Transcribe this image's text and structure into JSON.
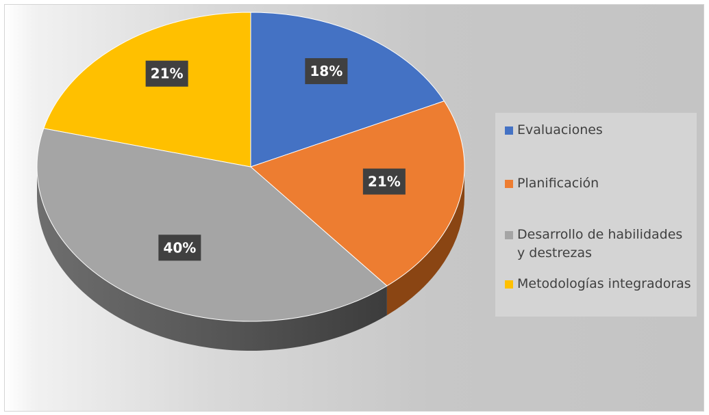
{
  "chart_data": {
    "type": "pie",
    "style": "3d",
    "slices": [
      {
        "label": "Evaluaciones",
        "value": 18,
        "display": "18%",
        "color": "#4472C4",
        "side_color": "#2E4E86"
      },
      {
        "label": "Planificación",
        "value": 21,
        "display": "21%",
        "color": "#ED7D31",
        "side_color": "#8A4513"
      },
      {
        "label": "Desarrollo de habilidades y destrezas",
        "value": 40,
        "display": "40%",
        "color": "#A5A5A5",
        "side_color": "#5A5A5A"
      },
      {
        "label": "Metodologías integradoras",
        "value": 21,
        "display": "21%",
        "color": "#FFC000",
        "side_color": "#8A6500"
      }
    ],
    "legend_position": "right",
    "data_label_background": "#404040",
    "data_label_color": "#FFFFFF"
  },
  "legend": {
    "items": [
      {
        "label": "Evaluaciones",
        "color": "#4472C4"
      },
      {
        "label": "Planificación",
        "color": "#ED7D31"
      },
      {
        "label": "Desarrollo de habilidades y destrezas",
        "color": "#A5A5A5"
      },
      {
        "label": "Metodologías integradoras",
        "color": "#FFC000"
      }
    ]
  }
}
